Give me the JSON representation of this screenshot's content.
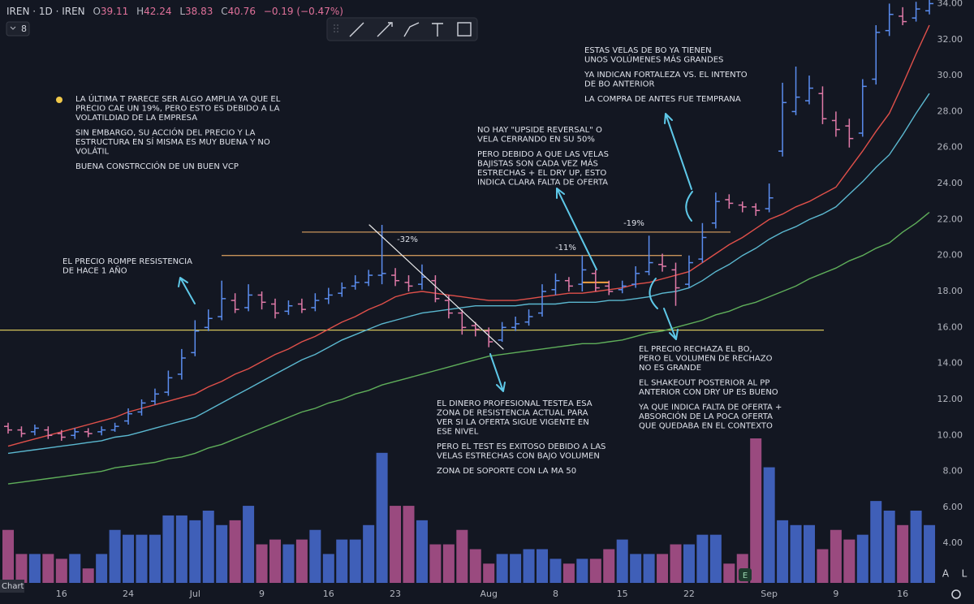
{
  "chart_data": {
    "type": "ohlc",
    "header": {
      "symbol": "IREN · 1D · IREN",
      "fields": [
        {
          "key": "O",
          "value": "39.11"
        },
        {
          "key": "H",
          "value": "42.24"
        },
        {
          "key": "L",
          "value": "38.83"
        },
        {
          "key": "C",
          "value": "40.76"
        }
      ],
      "change": "−0.19 (−0.47%)"
    },
    "ui": {
      "indicator_count": "8",
      "chart_tab": "Chart",
      "earnings_badge": "E",
      "auto_button": "A",
      "log_button": "L"
    },
    "up_color": "#5b8def",
    "down_color": "#e07aa8",
    "volume_up_color": "#3f5fb8",
    "volume_down_color": "#9a4a7f",
    "categories": [
      null,
      null,
      null,
      null,
      "16",
      null,
      null,
      null,
      null,
      "24",
      null,
      null,
      null,
      null,
      "Jul",
      null,
      null,
      null,
      null,
      "9",
      null,
      null,
      null,
      null,
      "16",
      null,
      null,
      null,
      null,
      "23",
      null,
      null,
      null,
      null,
      null,
      null,
      "Aug",
      null,
      null,
      null,
      null,
      "8",
      null,
      null,
      null,
      null,
      "15",
      null,
      null,
      null,
      null,
      "22",
      null,
      null,
      null,
      null,
      null,
      "Sep",
      null,
      null,
      null,
      null,
      "9",
      null,
      null,
      null,
      null,
      "16",
      null,
      null
    ],
    "ohlc": {
      "open": [
        10.5,
        10.3,
        10.2,
        10.3,
        10.1,
        10.0,
        10.2,
        10.2,
        10.3,
        10.8,
        11.3,
        11.9,
        12.4,
        13.4,
        14.6,
        16.0,
        16.6,
        17.5,
        17.1,
        17.8,
        17.3,
        16.9,
        17.3,
        17.1,
        17.6,
        17.9,
        18.3,
        18.5,
        18.9,
        18.9,
        18.5,
        18.4,
        18.6,
        17.5,
        16.8,
        16.1,
        15.8,
        15.3,
        16.0,
        16.3,
        16.8,
        18.1,
        18.6,
        18.4,
        19.0,
        18.3,
        18.1,
        18.4,
        19.1,
        19.5,
        19.2,
        18.4,
        19.8,
        21.8,
        23.1,
        22.8,
        22.7,
        22.6,
        25.8,
        28.0,
        28.6,
        29.0,
        27.5,
        27.2,
        26.8,
        29.8,
        32.5,
        33.3,
        33.2,
        33.6
      ],
      "high": [
        10.7,
        10.5,
        10.6,
        10.5,
        10.3,
        10.4,
        10.4,
        10.5,
        10.7,
        11.5,
        12.0,
        12.6,
        13.6,
        14.8,
        16.4,
        17.0,
        18.6,
        17.9,
        18.4,
        18.0,
        17.6,
        17.5,
        17.6,
        17.9,
        18.2,
        18.5,
        18.9,
        19.2,
        21.7,
        19.3,
        18.9,
        19.5,
        18.9,
        17.8,
        17.0,
        16.3,
        16.0,
        16.3,
        16.6,
        17.0,
        18.4,
        19.0,
        18.8,
        20.0,
        19.2,
        18.6,
        18.6,
        19.4,
        21.1,
        20.1,
        19.6,
        20.0,
        21.8,
        23.5,
        23.4,
        23.0,
        22.9,
        24.0,
        29.6,
        30.5,
        30.0,
        29.4,
        28.0,
        27.6,
        29.8,
        32.8,
        34.0,
        33.8,
        34.1,
        34.2
      ],
      "low": [
        10.1,
        9.9,
        10.0,
        9.8,
        9.7,
        9.8,
        9.9,
        10.0,
        10.2,
        10.6,
        11.1,
        11.7,
        12.2,
        13.1,
        14.4,
        15.8,
        16.4,
        16.8,
        16.9,
        17.0,
        16.5,
        16.7,
        16.8,
        16.9,
        17.3,
        17.7,
        18.1,
        18.3,
        18.4,
        18.3,
        18.0,
        18.1,
        17.4,
        16.5,
        15.6,
        15.5,
        14.9,
        15.2,
        15.8,
        16.1,
        16.6,
        17.8,
        18.0,
        18.0,
        18.0,
        17.8,
        17.9,
        18.2,
        18.9,
        19.1,
        17.2,
        18.2,
        19.6,
        21.5,
        22.6,
        22.4,
        22.2,
        22.4,
        25.5,
        27.8,
        28.4,
        27.3,
        26.6,
        26.0,
        26.6,
        29.5,
        32.2,
        32.8,
        33.0,
        33.4
      ],
      "close": [
        10.3,
        10.1,
        10.4,
        10.0,
        9.9,
        10.2,
        10.1,
        10.3,
        10.5,
        11.2,
        11.8,
        12.3,
        13.2,
        14.3,
        15.8,
        16.5,
        17.6,
        17.0,
        17.8,
        17.4,
        16.8,
        17.2,
        17.0,
        17.5,
        17.8,
        18.2,
        18.5,
        18.9,
        19.0,
        18.6,
        18.3,
        18.8,
        17.6,
        16.8,
        16.0,
        15.9,
        15.2,
        16.0,
        16.2,
        16.6,
        18.0,
        18.6,
        18.3,
        19.2,
        18.2,
        18.0,
        18.3,
        19.0,
        19.6,
        19.4,
        18.2,
        19.6,
        21.0,
        23.0,
        22.9,
        22.7,
        22.5,
        23.2,
        28.5,
        28.8,
        29.3,
        27.6,
        27.0,
        26.5,
        29.4,
        32.4,
        33.4,
        33.0,
        33.7,
        34.0
      ]
    },
    "volume": [
      11,
      6,
      6,
      6,
      5,
      6,
      3,
      6,
      11,
      10,
      10,
      10,
      14,
      14,
      13,
      15,
      12,
      13,
      16,
      8,
      9,
      8,
      9,
      11,
      6,
      9,
      9,
      12,
      27,
      16,
      16,
      13,
      8,
      8,
      11,
      7,
      4,
      6,
      6,
      7,
      7,
      5,
      4,
      5,
      5,
      7,
      9,
      6,
      6,
      6,
      8,
      8,
      10,
      10,
      4,
      6,
      30,
      24,
      13,
      12,
      12,
      7,
      11,
      9,
      10,
      17,
      15,
      12,
      15,
      12
    ],
    "moving_averages": [
      {
        "color": "#e0504a",
        "values": [
          9.4,
          9.6,
          9.8,
          10.0,
          10.2,
          10.4,
          10.6,
          10.8,
          11.0,
          11.3,
          11.5,
          11.7,
          11.9,
          12.1,
          12.3,
          12.7,
          13.0,
          13.4,
          13.7,
          14.1,
          14.5,
          14.8,
          15.2,
          15.5,
          15.9,
          16.3,
          16.6,
          17.0,
          17.3,
          17.7,
          17.9,
          18.0,
          17.9,
          17.8,
          17.7,
          17.6,
          17.5,
          17.5,
          17.5,
          17.6,
          17.7,
          17.8,
          17.9,
          17.9,
          18.0,
          18.1,
          18.2,
          18.4,
          18.5,
          18.7,
          18.9,
          19.1,
          19.6,
          20.1,
          20.6,
          21.0,
          21.5,
          22.0,
          22.3,
          22.7,
          23.0,
          23.4,
          23.8,
          24.8,
          25.8,
          26.9,
          27.9,
          29.5,
          31.2,
          32.8
        ]
      },
      {
        "color": "#5bb8d0",
        "values": [
          9.0,
          9.1,
          9.2,
          9.3,
          9.4,
          9.5,
          9.6,
          9.7,
          9.9,
          10.0,
          10.2,
          10.4,
          10.6,
          10.8,
          11.0,
          11.4,
          11.8,
          12.2,
          12.6,
          13.0,
          13.4,
          13.8,
          14.2,
          14.5,
          14.9,
          15.3,
          15.6,
          15.9,
          16.2,
          16.4,
          16.6,
          16.8,
          16.9,
          17.0,
          17.1,
          17.2,
          17.2,
          17.2,
          17.2,
          17.3,
          17.3,
          17.3,
          17.4,
          17.4,
          17.4,
          17.5,
          17.5,
          17.6,
          17.7,
          17.9,
          18.0,
          18.2,
          18.6,
          19.1,
          19.5,
          20.0,
          20.4,
          20.9,
          21.3,
          21.6,
          22.0,
          22.3,
          22.7,
          23.4,
          24.1,
          24.9,
          25.6,
          26.7,
          27.9,
          29.0
        ]
      },
      {
        "color": "#5fae5a",
        "values": [
          7.3,
          7.4,
          7.5,
          7.6,
          7.7,
          7.8,
          7.9,
          8.0,
          8.2,
          8.3,
          8.4,
          8.5,
          8.7,
          8.8,
          9.0,
          9.3,
          9.5,
          9.8,
          10.1,
          10.4,
          10.7,
          11.0,
          11.3,
          11.5,
          11.8,
          12.0,
          12.3,
          12.5,
          12.8,
          13.0,
          13.2,
          13.4,
          13.6,
          13.8,
          14.0,
          14.2,
          14.4,
          14.5,
          14.6,
          14.7,
          14.8,
          14.9,
          15.0,
          15.1,
          15.1,
          15.2,
          15.3,
          15.5,
          15.7,
          15.8,
          16.0,
          16.2,
          16.4,
          16.7,
          16.9,
          17.2,
          17.4,
          17.7,
          18.0,
          18.3,
          18.7,
          19.0,
          19.3,
          19.7,
          20.0,
          20.4,
          20.7,
          21.3,
          21.8,
          22.4
        ]
      }
    ],
    "hlines": [
      {
        "value": 21.3,
        "color": "#c8935a"
      },
      {
        "value": 20.0,
        "color": "#c8935a"
      },
      {
        "value": 15.85,
        "color": "#d4c45a"
      },
      {
        "value": 18.5,
        "color": "#f0a040"
      }
    ],
    "ylim": [
      1.8,
      34.2
    ],
    "yticks": [
      {
        "value": 4,
        "label": "4.00"
      },
      {
        "value": 6,
        "label": "6.00"
      },
      {
        "value": 8,
        "label": "8.00"
      },
      {
        "value": 10,
        "label": "10.00"
      },
      {
        "value": 12,
        "label": "12.00"
      },
      {
        "value": 14,
        "label": "14.00"
      },
      {
        "value": 16,
        "label": "16.00"
      },
      {
        "value": 18,
        "label": "18.00"
      },
      {
        "value": 20,
        "label": "20.00"
      },
      {
        "value": 22,
        "label": "22.00"
      },
      {
        "value": 24,
        "label": "24.00"
      },
      {
        "value": 26,
        "label": "26.00"
      },
      {
        "value": 28,
        "label": "28.00"
      },
      {
        "value": 30,
        "label": "30.00"
      },
      {
        "value": 32,
        "label": "32.00"
      },
      {
        "value": 34,
        "label": "34.00"
      }
    ],
    "labels": [
      "-32%",
      "-11%",
      "-19%"
    ],
    "annotations": [
      {
        "paragraphs": [
          [
            "LA ÚLTIMA T PARECE SER ALGO AMPLIA YA QUE EL",
            "PRECIO CAE UN 19%, PERO ESTO ES DEBIDO A LA",
            "VOLATILDIAD DE LA EMPRESA"
          ],
          [
            "SIN EMBARGO, SU ACCIÓN DEL PRECIO Y LA",
            "ESTRUCTURA EN SÍ MISMA ES MUY BUENA Y NO",
            "VOLÁTIL"
          ],
          [
            "BUENA CONSTRCCIÓN DE UN BUEN VCP"
          ]
        ]
      },
      {
        "paragraphs": [
          [
            "EL PRECIO ROMPE RESISTENCIA",
            "DE HACE 1 AÑO"
          ]
        ]
      },
      {
        "paragraphs": [
          [
            "EL DINERO PROFESIONAL TESTEA ESA",
            "ZONA DE RESISTENCIA ACTUAL PARA",
            "VER SI LA OFERTA SIGUE VIGENTE EN",
            "ESE NIVEL"
          ],
          [
            "PERO EL TEST ES EXITOSO DEBIDO A LAS",
            "VELAS ESTRECHAS CON BAJO VOLUMEN"
          ],
          [
            "ZONA DE SOPORTE CON LA MA 50"
          ]
        ]
      },
      {
        "paragraphs": [
          [
            "NO HAY \"UPSIDE REVERSAL\" O",
            "VELA CERRANDO EN SU 50%"
          ],
          [
            "PERO DEBIDO A QUE LAS VELAS",
            "BAJISTAS SON CADA VEZ MÁS",
            "ESTRECHAS + EL DRY UP, ESTO",
            "INDICA CLARA FALTA DE OFERTA"
          ]
        ]
      },
      {
        "paragraphs": [
          [
            "ESTAS VELAS DE BO YA TIENEN",
            "UNOS VOLÚMENES MÁS GRANDES"
          ],
          [
            "YA INDICAN FORTALEZA VS. EL INTENTO",
            "DE BO ANTERIOR"
          ],
          [
            "LA COMPRA DE ANTES FUE TEMPRANA"
          ]
        ]
      },
      {
        "paragraphs": [
          [
            "EL PRECIO RECHAZA EL BO,",
            "PERO EL VOLUMEN DE RECHAZO",
            "NO ES GRANDE"
          ],
          [
            "EL SHAKEOUT POSTERIOR AL PP",
            "ANTERIOR CON DRY UP ES BUENO"
          ],
          [
            "YA QUE INDICA FALTA DE OFERTA +",
            "ABSORCIÓN DE LA POCA OFERTA",
            "QUE QUEDABA EN EL CONTEXTO"
          ]
        ]
      }
    ]
  }
}
